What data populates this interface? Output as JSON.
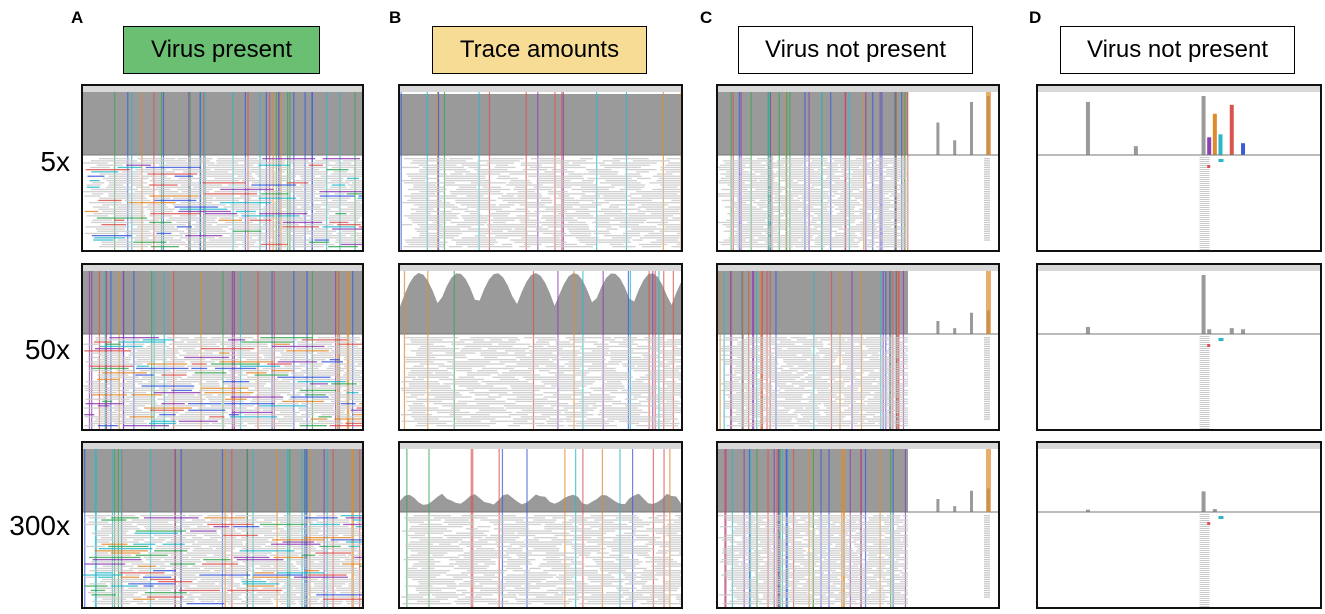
{
  "figure": {
    "panel_letters": [
      "A",
      "B",
      "C",
      "D"
    ],
    "columns": [
      {
        "letter": "A",
        "header": "Virus present",
        "header_color": "#6bbf72",
        "mode": "full"
      },
      {
        "letter": "B",
        "header": "Trace amounts",
        "header_color": "#f7dc96",
        "mode": "trace"
      },
      {
        "letter": "C",
        "header": "Virus not present",
        "header_color": "#ffffff",
        "mode": "partial"
      },
      {
        "letter": "D",
        "header": "Virus not present",
        "header_color": "#ffffff",
        "mode": "sparse"
      }
    ],
    "rows": [
      {
        "label": "5x"
      },
      {
        "label": "50x"
      },
      {
        "label": "300x"
      }
    ]
  },
  "colors": {
    "coverage_gray": "#9a9a9a",
    "read_gray": "#c9c9c9",
    "mismatch_red": "#d9534f",
    "mismatch_blue": "#3b5bd9",
    "mismatch_green": "#3aa655",
    "mismatch_purple": "#8e3fb0",
    "mismatch_orange": "#e08a2e",
    "mismatch_cyan": "#2ab8c9"
  }
}
